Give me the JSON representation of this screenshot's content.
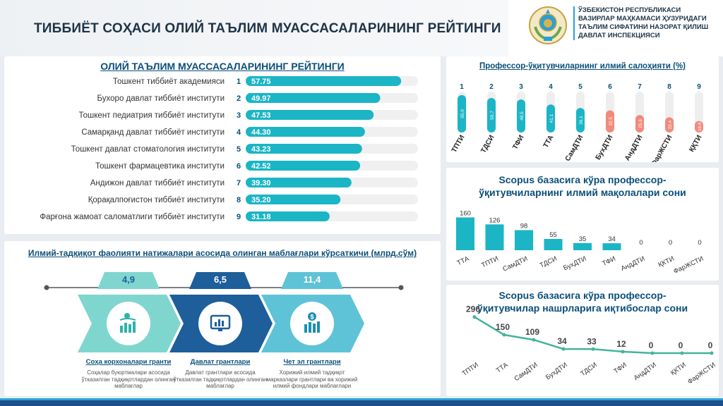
{
  "header": {
    "title": "ТИББИЁТ СОҲАСИ ОЛИЙ ТАЪЛИМ МУАССАСАЛАРИНИНГ РЕЙТИНГИ",
    "org_lines": [
      "ЎЗБЕКИСТОН РЕСПУБЛИКАСИ",
      "ВАЗИРЛАР МАҲКАМАСИ ҲУЗУРИДАГИ",
      "ТАЪЛИМ СИФАТИНИ НАЗОРАТ ҚИЛИШ",
      "ДАВЛАТ ИНСПЕКЦИЯСИ"
    ]
  },
  "colors": {
    "teal": "#1bb5c5",
    "salmon": "#f08a7a",
    "dark_blue": "#0a4f7a",
    "track": "#f0f0f0"
  },
  "chart_data": [
    {
      "type": "bar",
      "orientation": "horizontal",
      "title": "ОЛИЙ ТАЪЛИМ МУАССАСАЛАРИНИНГ РЕЙТИНГИ",
      "categories": [
        "Тошкент тиббиёт академияси",
        "Бухоро давлат тиббиёт институти",
        "Тошкент педиатрия тиббиёт институти",
        "Самарқанд давлат тиббиёт институти",
        "Тошкент давлат стоматология институти",
        "Тошкент фармацевтика институти",
        "Андижон давлат тиббиёт институти",
        "Қорақалпоғистон тиббиёт институти",
        "Фарғона жамоат саломатлиги тиббиёт институти"
      ],
      "ranks": [
        "1",
        "2",
        "3",
        "4",
        "5",
        "6",
        "7",
        "8",
        "9"
      ],
      "values": [
        57.75,
        49.97,
        47.53,
        44.3,
        43.23,
        42.52,
        39.3,
        35.2,
        31.18
      ],
      "labels": [
        "57.75",
        "49.97",
        "47.53",
        "44.30",
        "43.23",
        "42.52",
        "39.30",
        "35.20",
        "31.18"
      ],
      "xlim": [
        0,
        64
      ]
    },
    {
      "type": "bar",
      "orientation": "vertical-pill",
      "title": "Профессор-ўқитувчиларнинг илмий салоҳияти (%)",
      "categories": [
        "ТПТИ",
        "ТДСИ",
        "ТФИ",
        "ТТА",
        "СамДТИ",
        "БухДТИ",
        "АндДТИ",
        "ФарЖСТИ",
        "ҚҚТИ"
      ],
      "ranks": [
        "1",
        "2",
        "3",
        "4",
        "5",
        "6",
        "7",
        "8",
        "9"
      ],
      "values": [
        55.0,
        50.7,
        48.5,
        41.1,
        36.1,
        32.5,
        25.6,
        22.4,
        16.9
      ],
      "labels": [
        "55,0",
        "50,7",
        "48,5",
        "41,1",
        "36,1",
        "32,5",
        "25,6",
        "22,4",
        "16,9"
      ],
      "ylim": [
        0,
        60
      ],
      "highlight_from_index": 5
    },
    {
      "type": "bar",
      "title": "Scopus базасига кўра профессор-ўқитувчиларнинг илмий мақолалари сони",
      "categories": [
        "ТТА",
        "ТПТИ",
        "СамДТИ",
        "ТДСИ",
        "БухДТИ",
        "ТФИ",
        "АндДТИ",
        "ҚКТИ",
        "ФарЖСТИ"
      ],
      "values": [
        160,
        126,
        98,
        55,
        35,
        34,
        0,
        0,
        0
      ],
      "ylim": [
        0,
        165
      ]
    },
    {
      "type": "line",
      "title": "Scopus базасига кўра профессор-ўқитувчилар нашрларига иқтибослар сони",
      "categories": [
        "ТПТИ",
        "ТТА",
        "СамДТИ",
        "БухДТИ",
        "ТДСИ",
        "ТФИ",
        "АндДТИ",
        "ҚКТИ",
        "ФарЖСТИ"
      ],
      "values": [
        296,
        150,
        109,
        34,
        33,
        12,
        0,
        0,
        0
      ],
      "ylim": [
        0,
        300
      ]
    }
  ],
  "funding": {
    "title": "Илмий-тадқиқот фаолияти натижалари асосида олинган маблағлари кўрсаткичи (млрд.сўм)",
    "items": [
      {
        "value": "4,9",
        "label": "Соҳа корхоналари гранти",
        "caption": "Соҳалар буюртмалари асосида ўтказилган тадқиқотлардан олинган маблағлар",
        "icon": "hand-coin-chart-icon"
      },
      {
        "value": "6,5",
        "label": "Давлат грантлари",
        "caption": "Давлат грантлари асосида ўтказилган тадқиқотлардан олинган маблағлар",
        "icon": "monitor-chart-icon"
      },
      {
        "value": "11,4",
        "label": "Чет эл грантлари",
        "caption": "Хорижий илмий тадқиқот марказлари грантлари ва хорижий илмий фондлари маблағлари",
        "icon": "dollar-chart-icon"
      }
    ]
  }
}
